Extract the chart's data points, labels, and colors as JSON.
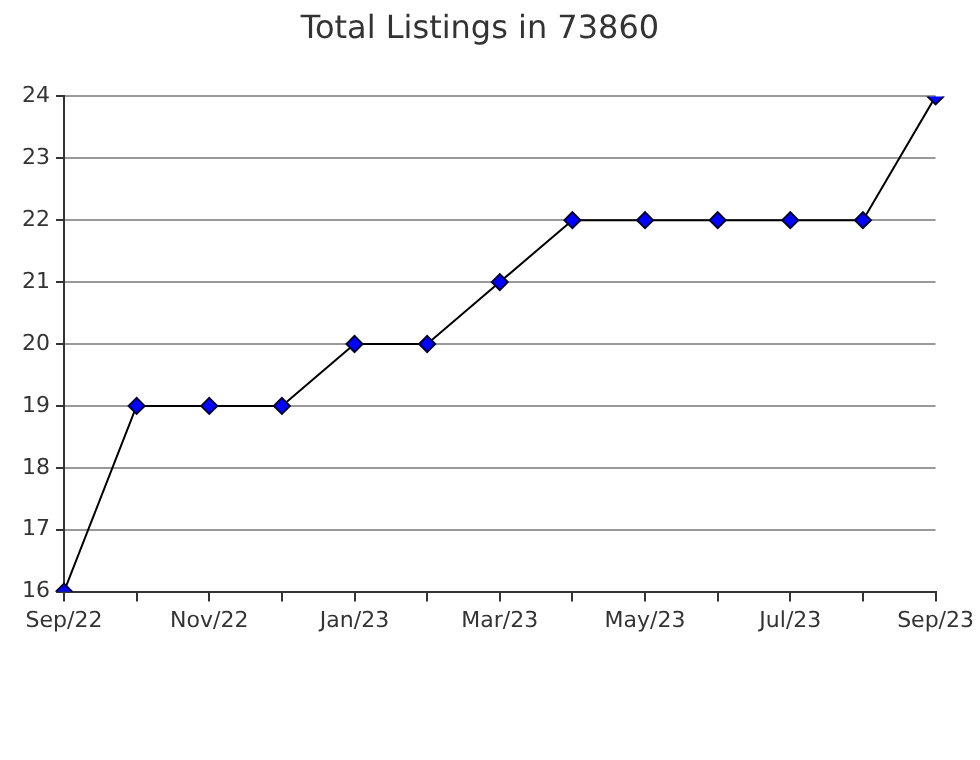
{
  "chart_data": {
    "type": "line",
    "title": "Total Listings in 73860",
    "categories": [
      "Sep/22",
      null,
      "Nov/22",
      null,
      "Jan/23",
      null,
      "Mar/23",
      null,
      "May/23",
      null,
      "Jul/23",
      null,
      "Sep/23"
    ],
    "series": [
      {
        "color": "#0000ff",
        "values": [
          16,
          19,
          19,
          19,
          20,
          20,
          21,
          22,
          22,
          22,
          22,
          22,
          24
        ]
      }
    ],
    "ylim": [
      16,
      24
    ],
    "yticks": [
      16,
      17,
      18,
      19,
      20,
      21,
      22,
      23,
      24
    ],
    "grid": "y",
    "legend": false,
    "marker": "diamond",
    "line_style": "solid"
  }
}
